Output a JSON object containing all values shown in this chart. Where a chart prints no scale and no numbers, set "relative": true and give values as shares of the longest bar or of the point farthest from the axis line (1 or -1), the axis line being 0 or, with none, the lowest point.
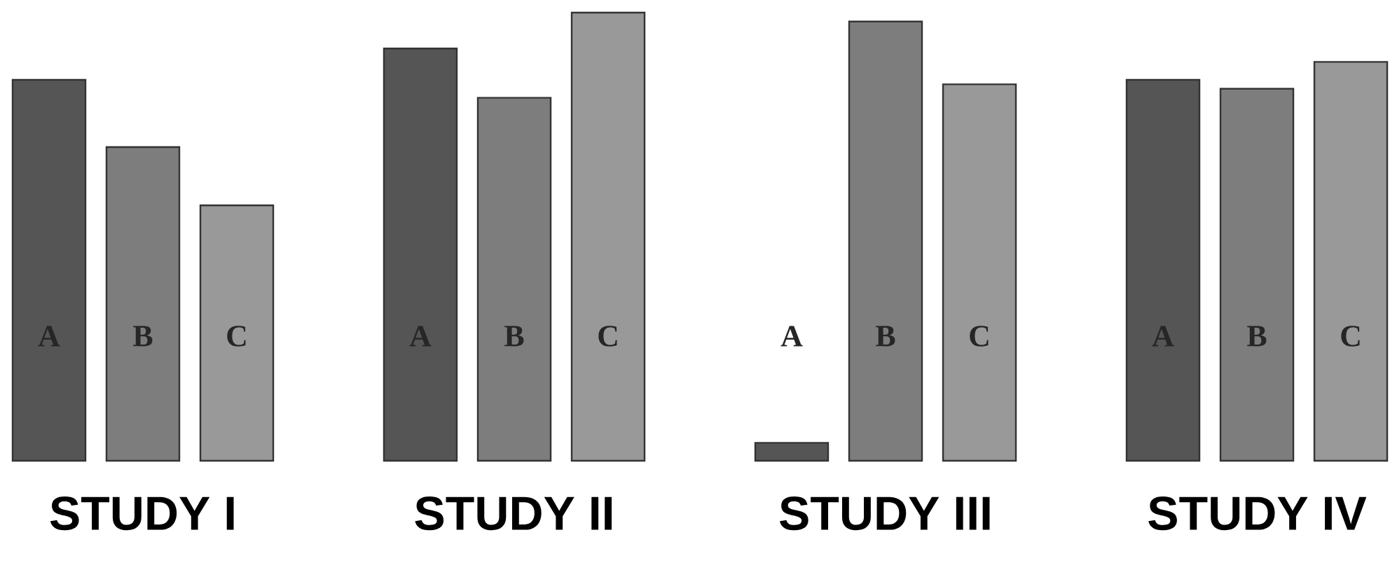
{
  "chart_data": {
    "type": "bar",
    "relative": true,
    "categories": [
      "STUDY I",
      "STUDY II",
      "STUDY III",
      "STUDY IV"
    ],
    "series": [
      {
        "name": "A",
        "color": "#555555",
        "values": [
          0.85,
          0.92,
          0.04,
          0.85
        ]
      },
      {
        "name": "B",
        "color": "#7d7d7d",
        "values": [
          0.7,
          0.81,
          0.98,
          0.83
        ]
      },
      {
        "name": "C",
        "color": "#999999",
        "values": [
          0.57,
          1,
          0.84,
          0.89
        ]
      }
    ]
  }
}
